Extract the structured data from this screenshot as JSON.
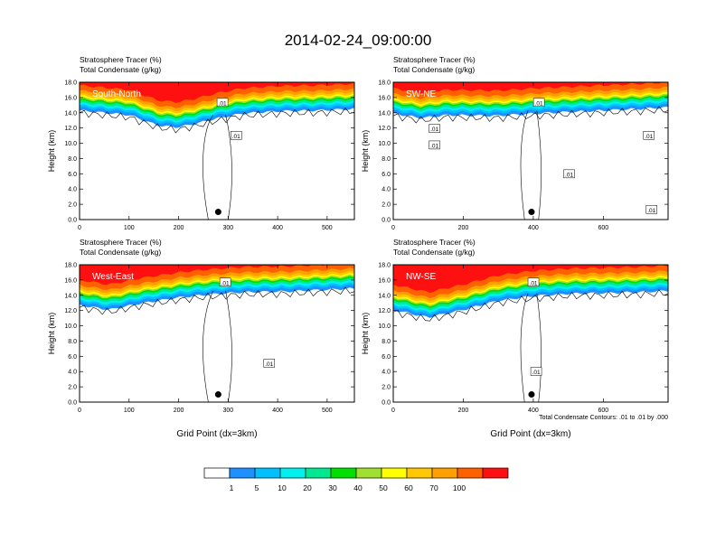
{
  "title": "2014-02-24_09:00:00",
  "colorbar": {
    "colors": [
      "#ffffff",
      "#1e8cff",
      "#00c8ff",
      "#00f0f0",
      "#00e882",
      "#00e600",
      "#a0e632",
      "#e6e632",
      "#ffff00",
      "#f0c800",
      "#ff9600",
      "#ff5000",
      "#f01e1e"
    ],
    "display_colors": [
      "#ffffff",
      "#1e90ff",
      "#00c0ff",
      "#00f0f0",
      "#00e890",
      "#00e000",
      "#a0e030",
      "#ffff00",
      "#ffc800",
      "#ffa000",
      "#ff6000",
      "#ff1010"
    ],
    "labels": [
      "1",
      "5",
      "10",
      "20",
      "30",
      "40",
      "50",
      "60",
      "70",
      "100"
    ]
  },
  "footnote": "Total Condensate Contours: .01 to .01 by .000",
  "chart_data": [
    {
      "type": "heatmap",
      "panel_label": "South-North",
      "title_line1": "Stratosphere Tracer   (%)",
      "title_line2": "Total Condensate   (g/kg)",
      "ylabel": "Height (km)",
      "xlabel": "",
      "xlim": [
        0,
        555
      ],
      "ylim": [
        0,
        18
      ],
      "xticks": [
        "0",
        "100",
        "200",
        "300",
        "400",
        "500"
      ],
      "xtick_values": [
        0,
        100,
        200,
        300,
        400,
        500
      ],
      "yticks": [
        "0.0",
        "2.0",
        "4.0",
        "6.0",
        "8.0",
        "10.0",
        "12.0",
        "14.0",
        "16.0",
        "18.0"
      ],
      "marker": {
        "x": 280,
        "y": 1.0
      },
      "tropopause_km": [
        [
          0,
          15.2
        ],
        [
          100,
          14.6
        ],
        [
          160,
          13.2
        ],
        [
          200,
          13.0
        ],
        [
          230,
          13.4
        ],
        [
          280,
          14.2
        ],
        [
          330,
          14.8
        ],
        [
          400,
          15.1
        ],
        [
          480,
          15.2
        ],
        [
          555,
          15.4
        ]
      ],
      "contour_labels": [
        ".01",
        ".01"
      ]
    },
    {
      "type": "heatmap",
      "panel_label": "SW-NE",
      "title_line1": "Stratosphere Tracer   (%)",
      "title_line2": "Total Condensate   (g/kg)",
      "ylabel": "Height (km)",
      "xlabel": "",
      "xlim": [
        0,
        785
      ],
      "ylim": [
        0,
        18
      ],
      "xticks": [
        "0",
        "200",
        "400",
        "600"
      ],
      "xtick_values": [
        0,
        200,
        400,
        600
      ],
      "yticks": [
        "0.0",
        "2.0",
        "4.0",
        "6.0",
        "8.0",
        "10.0",
        "12.0",
        "14.0",
        "16.0",
        "18.0"
      ],
      "marker": {
        "x": 395,
        "y": 1.0
      },
      "tropopause_km": [
        [
          0,
          14.8
        ],
        [
          80,
          14.2
        ],
        [
          150,
          14.6
        ],
        [
          300,
          14.5
        ],
        [
          400,
          14.8
        ],
        [
          500,
          15.0
        ],
        [
          600,
          15.2
        ],
        [
          700,
          15.4
        ],
        [
          785,
          15.6
        ]
      ],
      "contour_labels": [
        ".01",
        ".01",
        ".01",
        ".01",
        ".01",
        ".01"
      ]
    },
    {
      "type": "heatmap",
      "panel_label": "West-East",
      "title_line1": "Stratosphere Tracer   (%)",
      "title_line2": "Total Condensate   (g/kg)",
      "ylabel": "Height (km)",
      "xlabel": "Grid Point (dx=3km)",
      "xlim": [
        0,
        555
      ],
      "ylim": [
        0,
        18
      ],
      "xticks": [
        "0",
        "100",
        "200",
        "300",
        "400",
        "500"
      ],
      "xtick_values": [
        0,
        100,
        200,
        300,
        400,
        500
      ],
      "yticks": [
        "0.0",
        "2.0",
        "4.0",
        "6.0",
        "8.0",
        "10.0",
        "12.0",
        "14.0",
        "16.0",
        "18.0"
      ],
      "marker": {
        "x": 280,
        "y": 1.0
      },
      "tropopause_km": [
        [
          0,
          13.6
        ],
        [
          60,
          13.0
        ],
        [
          120,
          13.8
        ],
        [
          200,
          14.6
        ],
        [
          260,
          15.0
        ],
        [
          330,
          15.3
        ],
        [
          420,
          15.4
        ],
        [
          555,
          15.8
        ]
      ],
      "contour_labels": [
        ".01",
        ".01"
      ]
    },
    {
      "type": "heatmap",
      "panel_label": "NW-SE",
      "title_line1": "Stratosphere Tracer   (%)",
      "title_line2": "Total Condensate   (g/kg)",
      "ylabel": "Height (km)",
      "xlabel": "Grid Point (dx=3km)",
      "xlim": [
        0,
        785
      ],
      "ylim": [
        0,
        18
      ],
      "xticks": [
        "0",
        "200",
        "400",
        "600"
      ],
      "xtick_values": [
        0,
        200,
        400,
        600
      ],
      "yticks": [
        "0.0",
        "2.0",
        "4.0",
        "6.0",
        "8.0",
        "10.0",
        "12.0",
        "14.0",
        "16.0",
        "18.0"
      ],
      "marker": {
        "x": 395,
        "y": 1.0
      },
      "tropopause_km": [
        [
          0,
          13.0
        ],
        [
          100,
          12.0
        ],
        [
          200,
          13.0
        ],
        [
          300,
          14.2
        ],
        [
          400,
          14.8
        ],
        [
          500,
          15.1
        ],
        [
          600,
          15.2
        ],
        [
          700,
          15.3
        ],
        [
          785,
          15.5
        ]
      ],
      "contour_labels": [
        ".01",
        ".01"
      ]
    }
  ]
}
